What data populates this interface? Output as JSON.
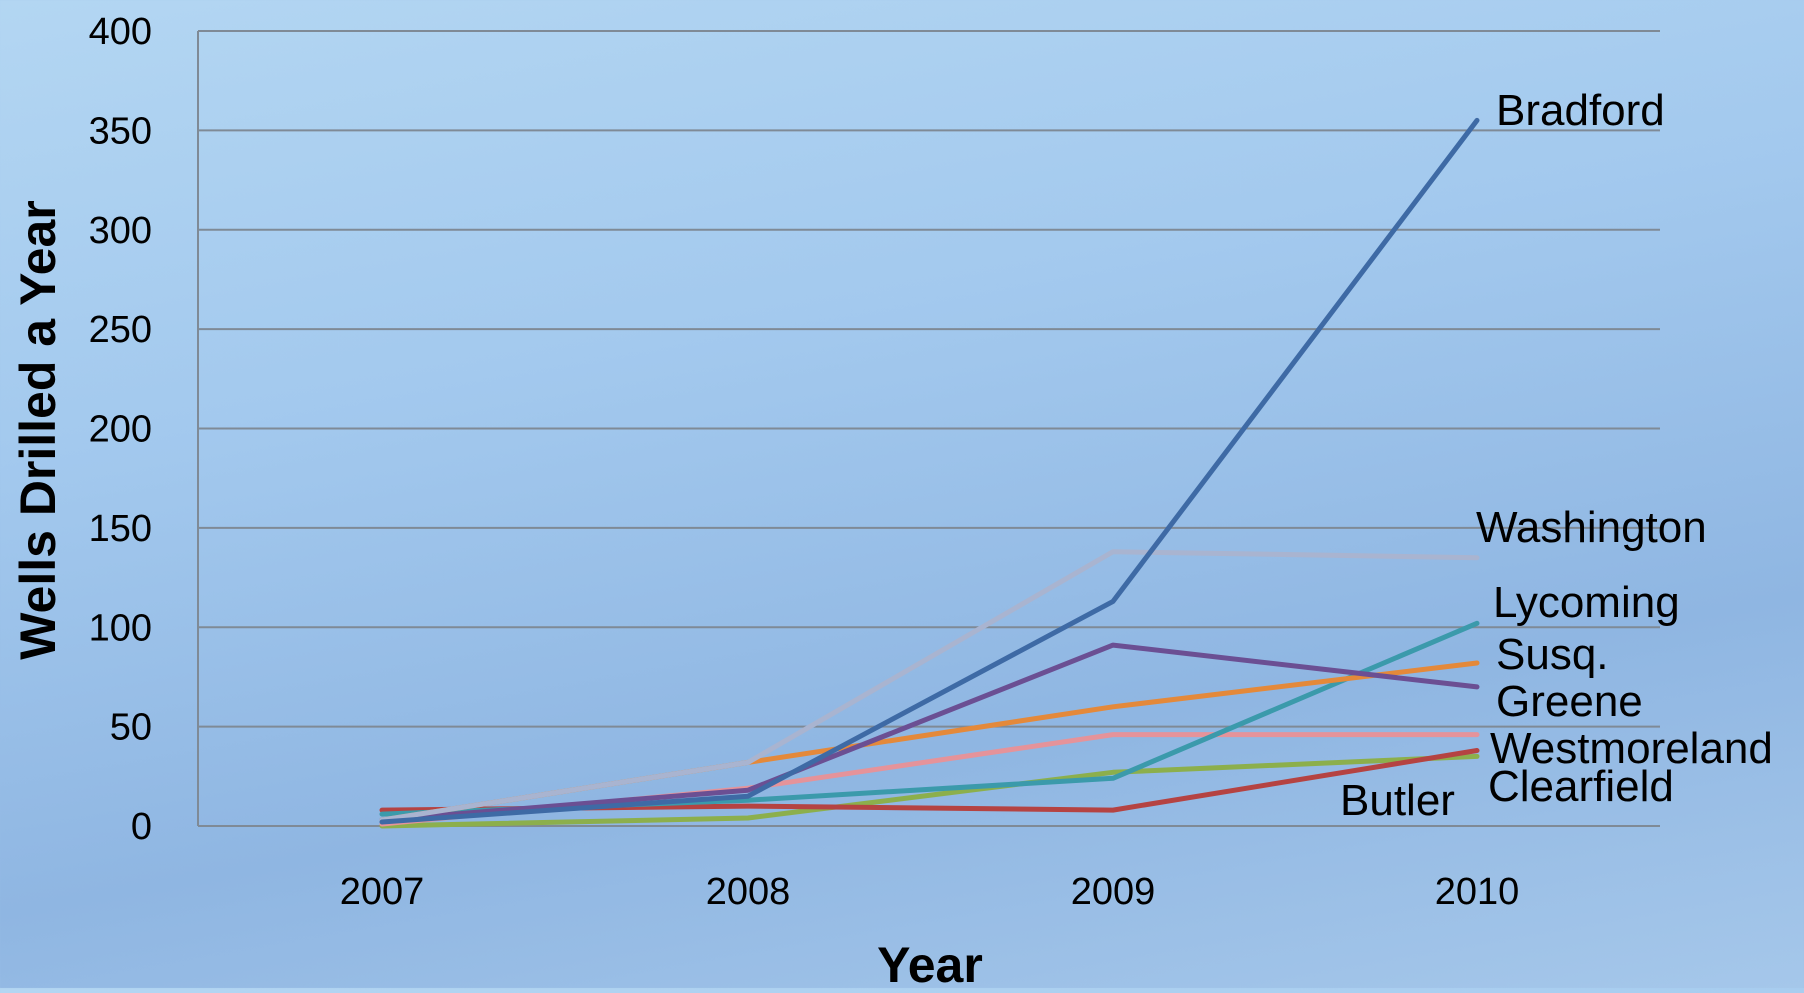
{
  "chart_data": {
    "type": "line",
    "title": "",
    "xlabel": "Year",
    "ylabel": "Wells Drilled a Year",
    "categories": [
      "2007",
      "2008",
      "2009",
      "2010"
    ],
    "ylim": [
      0,
      400
    ],
    "yticks": [
      0,
      50,
      100,
      150,
      200,
      250,
      300,
      350,
      400
    ],
    "grid": true,
    "legend": "none (series labeled at line ends)",
    "series": [
      {
        "name": "Bradford",
        "color": "#3e6aa5",
        "values": [
          2,
          15,
          113,
          355
        ]
      },
      {
        "name": "Washington",
        "color": "#a9b4d0",
        "values": [
          3,
          32,
          138,
          135
        ]
      },
      {
        "name": "Lycoming",
        "color": "#3b9aab",
        "values": [
          6,
          13,
          24,
          102
        ]
      },
      {
        "name": "Susq.",
        "color": "#e4893a",
        "values": [
          3,
          32,
          60,
          82
        ]
      },
      {
        "name": "Greene",
        "color": "#6b4f93",
        "values": [
          3,
          18,
          91,
          70
        ]
      },
      {
        "name": "Westmoreland",
        "color": "#e5939a",
        "values": [
          1,
          19,
          46,
          46
        ]
      },
      {
        "name": "Clearfield",
        "color": "#8caf4c",
        "values": [
          0,
          4,
          27,
          35
        ]
      },
      {
        "name": "Butler",
        "color": "#b54342",
        "values": [
          8,
          10,
          8,
          38
        ]
      }
    ]
  }
}
